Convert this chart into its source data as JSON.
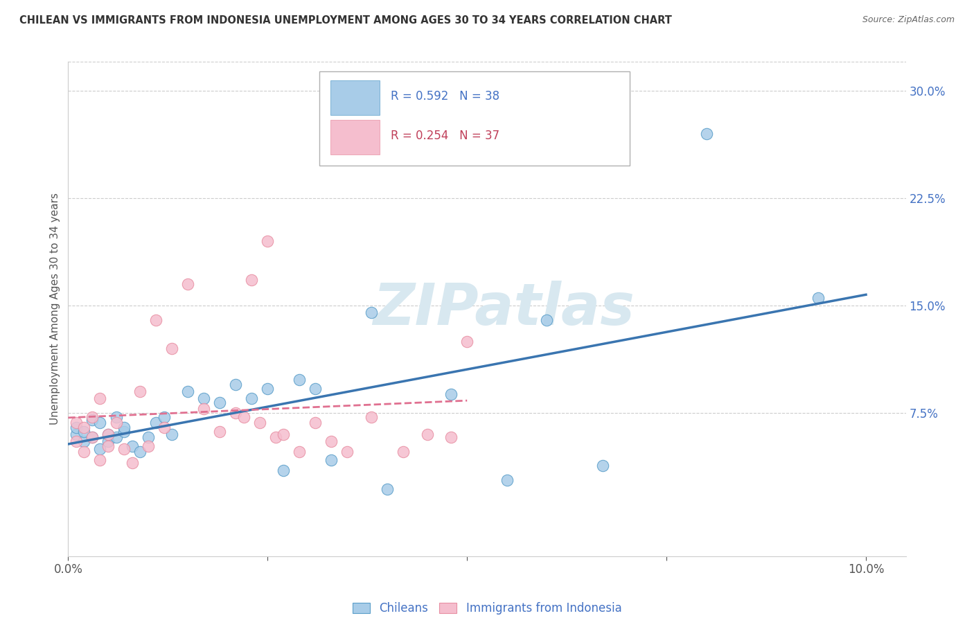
{
  "title": "CHILEAN VS IMMIGRANTS FROM INDONESIA UNEMPLOYMENT AMONG AGES 30 TO 34 YEARS CORRELATION CHART",
  "source": "Source: ZipAtlas.com",
  "ylabel": "Unemployment Among Ages 30 to 34 years",
  "xlim": [
    0.0,
    0.105
  ],
  "ylim": [
    -0.025,
    0.32
  ],
  "yticks_right": [
    0.075,
    0.15,
    0.225,
    0.3
  ],
  "ytick_labels_right": [
    "7.5%",
    "15.0%",
    "22.5%",
    "30.0%"
  ],
  "xticks": [
    0.0,
    0.025,
    0.05,
    0.075,
    0.1
  ],
  "xtick_labels": [
    "0.0%",
    "",
    "",
    "",
    "10.0%"
  ],
  "chileans_R": "0.592",
  "chileans_N": "38",
  "indonesians_R": "0.254",
  "indonesians_N": "37",
  "chilean_color": "#a8cce8",
  "chilean_edge_color": "#5a9ec9",
  "chilean_line_color": "#3a75b0",
  "indonesian_color": "#f5bece",
  "indonesian_edge_color": "#e88fa3",
  "indonesian_line_color": "#e07090",
  "background_color": "#ffffff",
  "grid_color": "#cccccc",
  "watermark": "ZIPatlas",
  "watermark_color": "#d8e8f0",
  "title_color": "#333333",
  "source_color": "#666666",
  "ylabel_color": "#555555",
  "tick_color": "#555555",
  "legend_R_color_blue": "#4472c4",
  "legend_N_color_blue": "#4472c4",
  "legend_R_color_pink": "#c0405a",
  "legend_N_color_pink": "#c0405a",
  "chileans_x": [
    0.001,
    0.001,
    0.002,
    0.002,
    0.003,
    0.003,
    0.004,
    0.004,
    0.005,
    0.005,
    0.006,
    0.006,
    0.007,
    0.007,
    0.008,
    0.009,
    0.01,
    0.011,
    0.012,
    0.013,
    0.015,
    0.017,
    0.019,
    0.021,
    0.023,
    0.025,
    0.027,
    0.029,
    0.031,
    0.033,
    0.038,
    0.04,
    0.048,
    0.055,
    0.06,
    0.067,
    0.08,
    0.094
  ],
  "chileans_y": [
    0.06,
    0.065,
    0.055,
    0.062,
    0.058,
    0.07,
    0.05,
    0.068,
    0.055,
    0.06,
    0.058,
    0.072,
    0.062,
    0.065,
    0.052,
    0.048,
    0.058,
    0.068,
    0.072,
    0.06,
    0.09,
    0.085,
    0.082,
    0.095,
    0.085,
    0.092,
    0.035,
    0.098,
    0.092,
    0.042,
    0.145,
    0.022,
    0.088,
    0.028,
    0.14,
    0.038,
    0.27,
    0.155
  ],
  "indonesians_x": [
    0.001,
    0.001,
    0.002,
    0.002,
    0.003,
    0.003,
    0.004,
    0.004,
    0.005,
    0.005,
    0.006,
    0.007,
    0.008,
    0.009,
    0.01,
    0.011,
    0.012,
    0.013,
    0.015,
    0.017,
    0.019,
    0.021,
    0.022,
    0.023,
    0.024,
    0.025,
    0.026,
    0.027,
    0.029,
    0.031,
    0.033,
    0.035,
    0.038,
    0.042,
    0.045,
    0.048,
    0.05
  ],
  "indonesians_y": [
    0.055,
    0.068,
    0.048,
    0.065,
    0.058,
    0.072,
    0.042,
    0.085,
    0.052,
    0.06,
    0.068,
    0.05,
    0.04,
    0.09,
    0.052,
    0.14,
    0.065,
    0.12,
    0.165,
    0.078,
    0.062,
    0.075,
    0.072,
    0.168,
    0.068,
    0.195,
    0.058,
    0.06,
    0.048,
    0.068,
    0.055,
    0.048,
    0.072,
    0.048,
    0.06,
    0.058,
    0.125
  ]
}
